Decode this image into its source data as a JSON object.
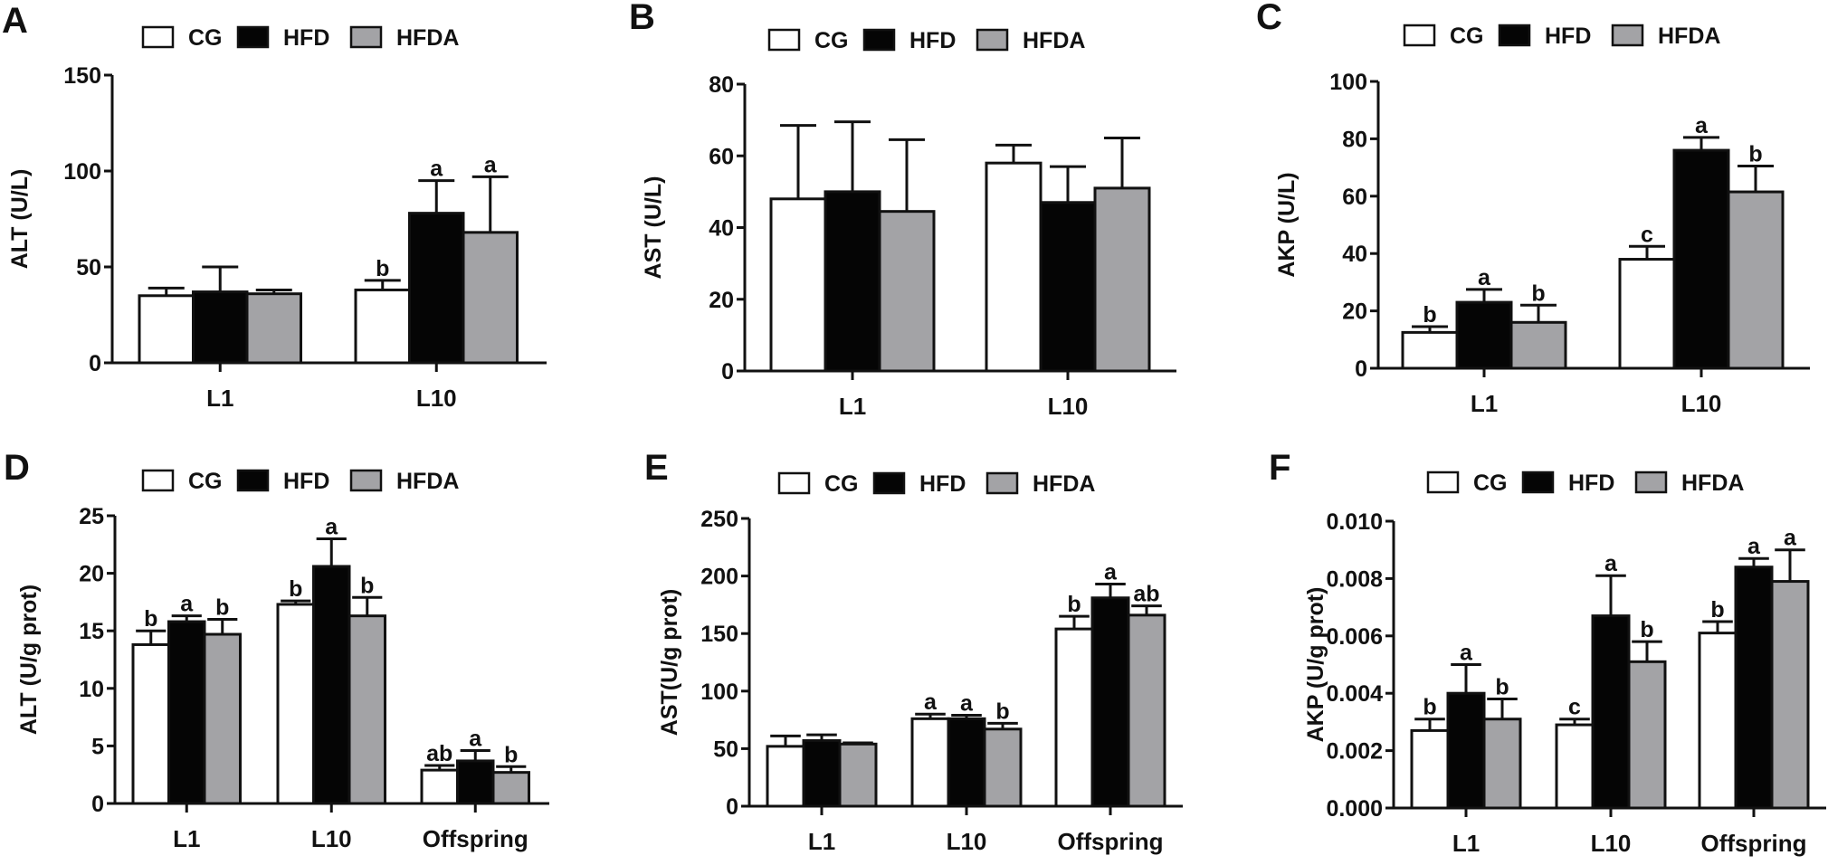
{
  "colors": {
    "CG": "#ffffff",
    "HFD": "#050505",
    "HFDA": "#a3a3a6",
    "stroke": "#111111"
  },
  "legend": [
    "CG",
    "HFD",
    "HFDA"
  ],
  "chart_data": [
    {
      "panel": "A",
      "type": "bar",
      "ylabel": "ALT (U/L)",
      "ylim": [
        0,
        150
      ],
      "yticks": [
        0,
        50,
        100,
        150
      ],
      "categories": [
        "L1",
        "L10"
      ],
      "series": [
        {
          "name": "CG",
          "values": [
            35,
            38
          ],
          "error_upper": [
            39,
            43
          ],
          "labels": [
            "",
            "b"
          ]
        },
        {
          "name": "HFD",
          "values": [
            37,
            78
          ],
          "error_upper": [
            50,
            95
          ],
          "labels": [
            "",
            "a"
          ]
        },
        {
          "name": "HFDA",
          "values": [
            36,
            68
          ],
          "error_upper": [
            38,
            97
          ],
          "labels": [
            "",
            "a"
          ]
        }
      ]
    },
    {
      "panel": "B",
      "type": "bar",
      "ylabel": "AST (U/L)",
      "ylim": [
        0,
        80
      ],
      "yticks": [
        0,
        20,
        40,
        60,
        80
      ],
      "categories": [
        "L1",
        "L10"
      ],
      "series": [
        {
          "name": "CG",
          "values": [
            48,
            58
          ],
          "error_upper": [
            68.5,
            63
          ],
          "labels": [
            "",
            ""
          ]
        },
        {
          "name": "HFD",
          "values": [
            50,
            47
          ],
          "error_upper": [
            69.5,
            57
          ],
          "labels": [
            "",
            ""
          ]
        },
        {
          "name": "HFDA",
          "values": [
            44.5,
            51
          ],
          "error_upper": [
            64.5,
            65
          ],
          "labels": [
            "",
            ""
          ]
        }
      ]
    },
    {
      "panel": "C",
      "type": "bar",
      "ylabel": "AKP (U/L)",
      "ylim": [
        0,
        100
      ],
      "yticks": [
        0,
        20,
        40,
        60,
        80,
        100
      ],
      "categories": [
        "L1",
        "L10"
      ],
      "series": [
        {
          "name": "CG",
          "values": [
            12.5,
            38
          ],
          "error_upper": [
            14.5,
            42.5
          ],
          "labels": [
            "b",
            "c"
          ]
        },
        {
          "name": "HFD",
          "values": [
            23,
            76
          ],
          "error_upper": [
            27.5,
            80.5
          ],
          "labels": [
            "a",
            "a"
          ]
        },
        {
          "name": "HFDA",
          "values": [
            16,
            61.5
          ],
          "error_upper": [
            22,
            70.5
          ],
          "labels": [
            "b",
            "b"
          ]
        }
      ]
    },
    {
      "panel": "D",
      "type": "bar",
      "ylabel": "ALT (U/g prot)",
      "ylim": [
        0,
        25
      ],
      "yticks": [
        0,
        5,
        10,
        15,
        20,
        25
      ],
      "categories": [
        "L1",
        "L10",
        "Offspring"
      ],
      "series": [
        {
          "name": "CG",
          "values": [
            13.8,
            17.3,
            2.9
          ],
          "error_upper": [
            15.0,
            17.6,
            3.3
          ],
          "labels": [
            "b",
            "b",
            "ab"
          ]
        },
        {
          "name": "HFD",
          "values": [
            15.8,
            20.6,
            3.7
          ],
          "error_upper": [
            16.3,
            23.0,
            4.6
          ],
          "labels": [
            "a",
            "a",
            "a"
          ]
        },
        {
          "name": "HFDA",
          "values": [
            14.7,
            16.3,
            2.7
          ],
          "error_upper": [
            16.0,
            17.9,
            3.2
          ],
          "labels": [
            "b",
            "b",
            "b"
          ]
        }
      ]
    },
    {
      "panel": "E",
      "type": "bar",
      "ylabel": "AST(U/g prot)",
      "ylim": [
        0,
        250
      ],
      "yticks": [
        0,
        50,
        100,
        150,
        200,
        250
      ],
      "categories": [
        "L1",
        "L10",
        "Offspring"
      ],
      "series": [
        {
          "name": "CG",
          "values": [
            52,
            76,
            154
          ],
          "error_upper": [
            61,
            80,
            165
          ],
          "labels": [
            "",
            "a",
            "b"
          ]
        },
        {
          "name": "HFD",
          "values": [
            57,
            76,
            181
          ],
          "error_upper": [
            62,
            79,
            193
          ],
          "labels": [
            "",
            "a",
            "a"
          ]
        },
        {
          "name": "HFDA",
          "values": [
            54,
            67,
            166
          ],
          "error_upper": [
            55,
            72,
            174
          ],
          "labels": [
            "",
            "b",
            "ab"
          ]
        }
      ]
    },
    {
      "panel": "F",
      "type": "bar",
      "ylabel": "AKP (U/g prot)",
      "ylim": [
        0,
        0.01
      ],
      "yticks": [
        "0.000",
        "0.002",
        "0.004",
        "0.006",
        "0.008",
        "0.010"
      ],
      "categories": [
        "L1",
        "L10",
        "Offspring"
      ],
      "series": [
        {
          "name": "CG",
          "values": [
            0.0027,
            0.0029,
            0.0061
          ],
          "error_upper": [
            0.0031,
            0.0031,
            0.0065
          ],
          "labels": [
            "b",
            "c",
            "b"
          ]
        },
        {
          "name": "HFD",
          "values": [
            0.004,
            0.0067,
            0.0084
          ],
          "error_upper": [
            0.005,
            0.0081,
            0.0087
          ],
          "labels": [
            "a",
            "a",
            "a"
          ]
        },
        {
          "name": "HFDA",
          "values": [
            0.0031,
            0.0051,
            0.0079
          ],
          "error_upper": [
            0.0038,
            0.0058,
            0.009
          ],
          "labels": [
            "b",
            "b",
            "a"
          ]
        }
      ]
    }
  ]
}
